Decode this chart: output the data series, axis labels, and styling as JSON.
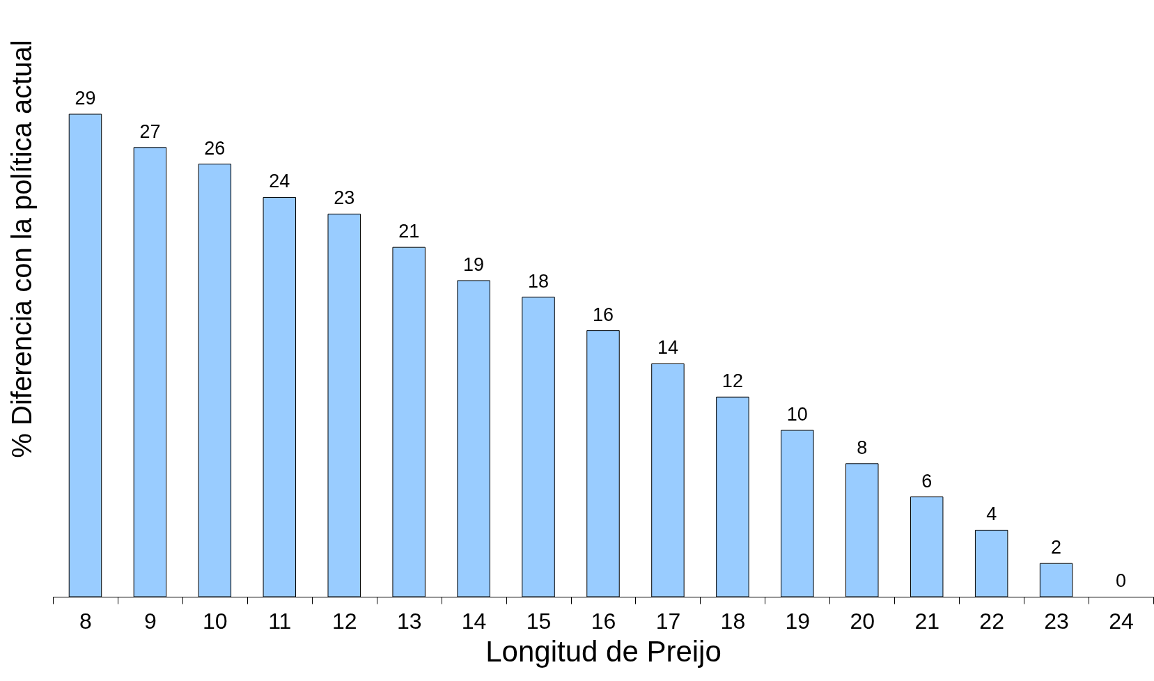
{
  "chart_data": {
    "type": "bar",
    "xlabel": "Longitud de Preijo",
    "ylabel": "% Diferencia con la política actual",
    "categories": [
      "8",
      "9",
      "10",
      "11",
      "12",
      "13",
      "14",
      "15",
      "16",
      "17",
      "18",
      "19",
      "20",
      "21",
      "22",
      "23",
      "24"
    ],
    "values": [
      29,
      27,
      26,
      24,
      23,
      21,
      19,
      18,
      16,
      14,
      12,
      10,
      8,
      6,
      4,
      2,
      0
    ],
    "color": "#99ccff",
    "data_labels": true,
    "grid": false
  }
}
